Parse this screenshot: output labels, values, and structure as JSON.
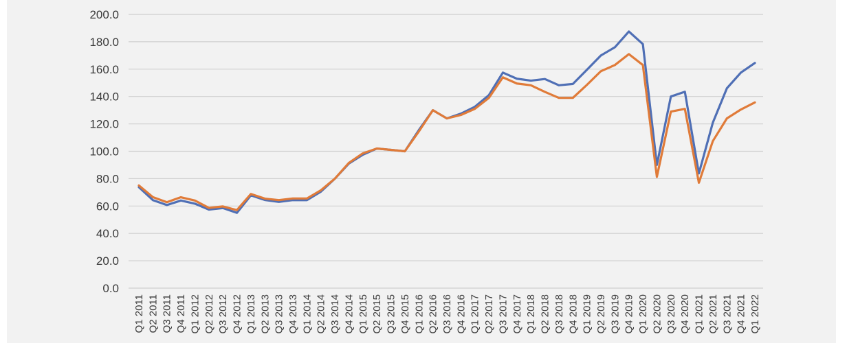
{
  "chart_data": {
    "type": "line",
    "title": "",
    "xlabel": "",
    "ylabel": "",
    "ylim": [
      0,
      200
    ],
    "yticks": [
      "0.0",
      "20.0",
      "40.0",
      "60.0",
      "80.0",
      "100.0",
      "120.0",
      "140.0",
      "160.0",
      "180.0",
      "200.0"
    ],
    "grid": true,
    "legend": "none",
    "categories": [
      "Q1 2011",
      "Q2 2011",
      "Q3 2011",
      "Q4 2011",
      "Q1 2012",
      "Q2 2012",
      "Q3 2012",
      "Q4 2012",
      "Q1 2013",
      "Q2 2013",
      "Q3 2013",
      "Q4 2013",
      "Q1 2014",
      "Q2 2014",
      "Q3 2014",
      "Q4 2014",
      "Q1 2015",
      "Q2 2015",
      "Q3 2015",
      "Q4 2015",
      "Q1 2016",
      "Q2 2016",
      "Q3 2016",
      "Q4 2016",
      "Q1 2017",
      "Q2 2017",
      "Q3 2017",
      "Q4 2017",
      "Q1 2018",
      "Q2 2018",
      "Q3 2018",
      "Q4 2018",
      "Q1 2019",
      "Q2 2019",
      "Q3 2019",
      "Q4 2019",
      "Q1 2020",
      "Q2 2020",
      "Q3 2020",
      "Q4 2020",
      "Q1 2021",
      "Q2 2021",
      "Q3 2021",
      "Q4 2021",
      "Q1 2022"
    ],
    "series": [
      {
        "color": "#4f6fb5",
        "values": [
          73.8,
          64.3,
          60.7,
          64.0,
          61.7,
          57.4,
          58.5,
          55.0,
          67.8,
          64.4,
          63.0,
          64.3,
          64.3,
          70.5,
          80.0,
          91.0,
          97.5,
          102.0,
          101.0,
          100.0,
          115.5,
          130.0,
          124.0,
          127.5,
          132.5,
          141.0,
          157.5,
          153.0,
          151.6,
          152.8,
          148.2,
          149.2,
          159.5,
          170.0,
          176.0,
          187.5,
          178.3,
          90.0,
          140.0,
          143.5,
          83.8,
          121.0,
          146.0,
          157.5,
          164.5
        ]
      },
      {
        "color": "#e07b39",
        "values": [
          75.0,
          66.5,
          62.8,
          66.4,
          64.0,
          58.6,
          59.7,
          57.0,
          68.8,
          65.4,
          64.3,
          65.5,
          65.5,
          71.5,
          80.0,
          91.5,
          98.5,
          102.0,
          101.0,
          100.0,
          114.5,
          130.0,
          124.0,
          126.5,
          131.0,
          139.0,
          154.0,
          149.5,
          148.2,
          143.4,
          139.0,
          139.0,
          148.5,
          158.5,
          163.0,
          171.0,
          163.0,
          81.3,
          129.0,
          131.0,
          77.0,
          107.5,
          124.0,
          130.5,
          135.7
        ]
      }
    ]
  }
}
